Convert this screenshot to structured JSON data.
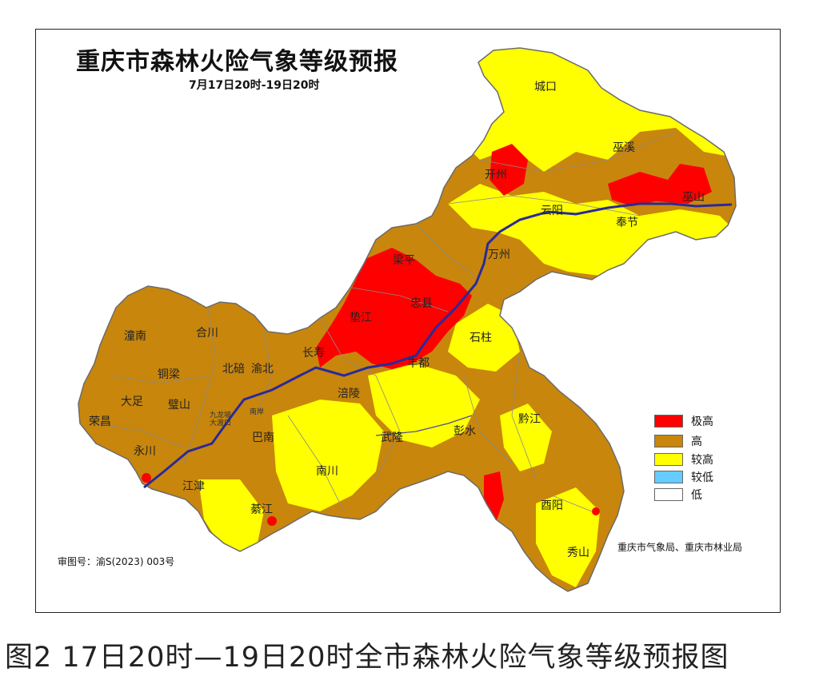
{
  "title": "重庆市森林火险气象等级预报",
  "subtitle": "7月17日20时-19日20时",
  "legend": [
    {
      "label": "极高",
      "color": "#ff0000"
    },
    {
      "label": "高",
      "color": "#c8860d"
    },
    {
      "label": "较高",
      "color": "#ffff00"
    },
    {
      "label": "较低",
      "color": "#66ccff"
    },
    {
      "label": "低",
      "color": "#ffffff"
    }
  ],
  "issuer": "重庆市气象局、重庆市林业局",
  "approval": "审图号：渝S(2023) 003号",
  "caption": "图2  17日20时—19日20时全市森林火险气象等级预报图",
  "places": {
    "chengkou": "城口",
    "wuxi": "巫溪",
    "wushan": "巫山",
    "kaizhou": "开州",
    "yunyang": "云阳",
    "fengjie": "奉节",
    "liangping": "梁平",
    "wanzhou": "万州",
    "zhongxian": "忠县",
    "dianjiang": "垫江",
    "shizhu": "石柱",
    "changshou": "长寿",
    "fengdu": "丰都",
    "tongnan": "潼南",
    "hechuan": "合川",
    "beibei": "北碚",
    "yubei": "渝北",
    "tongliang": "铜梁",
    "dazu": "大足",
    "bishan": "璧山",
    "rongchang": "荣昌",
    "yongchuan": "永川",
    "fuling": "涪陵",
    "banan": "巴南",
    "wulong": "武隆",
    "pengshui": "彭水",
    "qianjiang": "黔江",
    "nanchuan": "南川",
    "jiangjin": "江津",
    "qijiang": "綦江",
    "youyang": "酉阳",
    "xiushan": "秀山",
    "dalaoxu": "大渡口",
    "jiulongpo": "九龙坡",
    "nanan": "南岸"
  },
  "colors": {
    "high": "#c8860d",
    "very_high": "#ff0000",
    "higher": "#ffff00",
    "river": "#2a2a9a",
    "boundary": "#8a8a8a"
  }
}
